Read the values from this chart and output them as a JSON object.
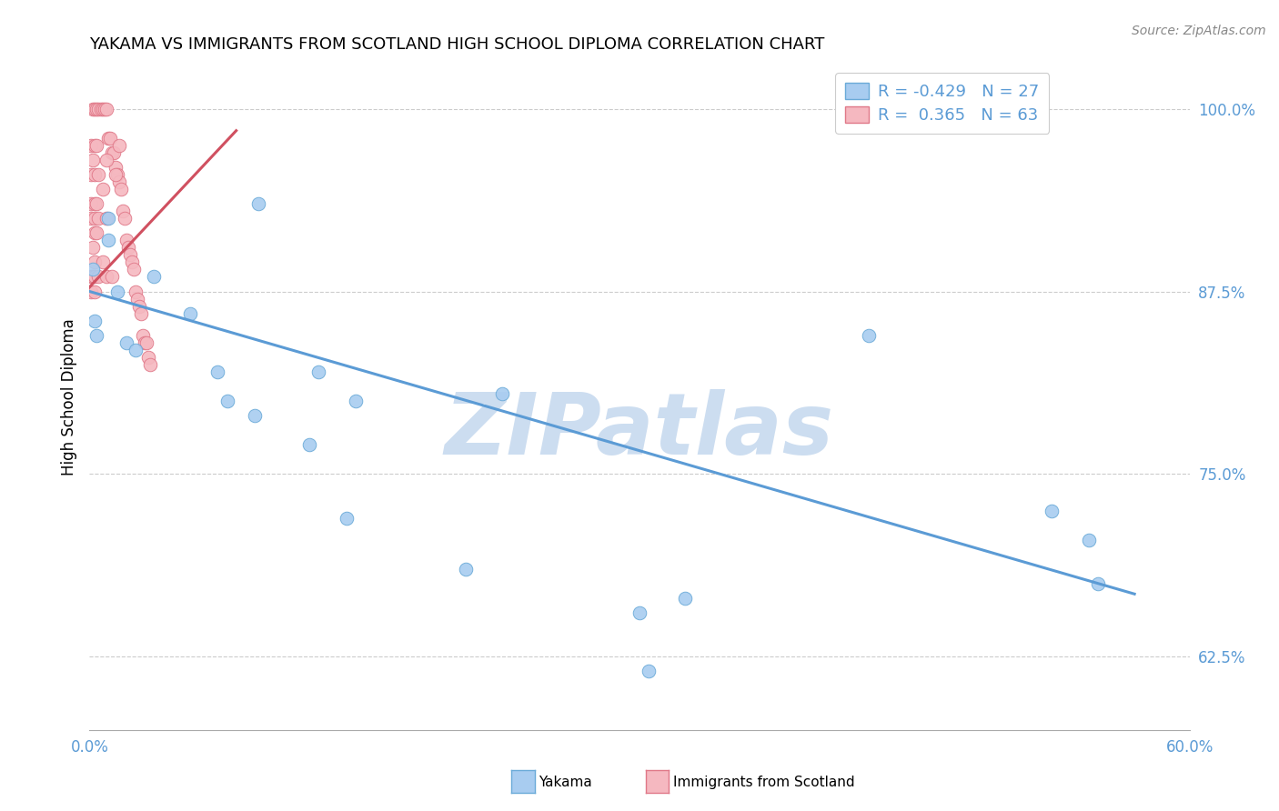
{
  "title": "YAKAMA VS IMMIGRANTS FROM SCOTLAND HIGH SCHOOL DIPLOMA CORRELATION CHART",
  "source": "Source: ZipAtlas.com",
  "ylabel": "High School Diploma",
  "xlim": [
    0.0,
    0.6
  ],
  "ylim": [
    0.575,
    1.03
  ],
  "yticks": [
    0.625,
    0.75,
    0.875,
    1.0
  ],
  "ytick_labels": [
    "62.5%",
    "75.0%",
    "87.5%",
    "100.0%"
  ],
  "xticks": [
    0.0,
    0.06,
    0.12,
    0.18,
    0.24,
    0.3,
    0.36,
    0.42,
    0.48,
    0.54,
    0.6
  ],
  "xtick_labels_show": [
    "0.0%",
    "60.0%"
  ],
  "legend_r_blue": "-0.429",
  "legend_n_blue": "27",
  "legend_r_pink": "0.365",
  "legend_n_pink": "63",
  "blue_color": "#A8CCF0",
  "blue_edge_color": "#6AAAD8",
  "pink_color": "#F5B8C0",
  "pink_edge_color": "#E07888",
  "blue_line_color": "#5B9BD5",
  "pink_line_color": "#D05060",
  "watermark": "ZIPatlas",
  "watermark_color": "#CCDDF0",
  "blue_scatter_x": [
    0.002,
    0.003,
    0.004,
    0.01,
    0.01,
    0.015,
    0.02,
    0.025,
    0.035,
    0.055,
    0.07,
    0.075,
    0.09,
    0.092,
    0.12,
    0.125,
    0.14,
    0.145,
    0.205,
    0.225,
    0.3,
    0.305,
    0.325,
    0.425,
    0.525,
    0.545,
    0.55
  ],
  "blue_scatter_y": [
    0.89,
    0.855,
    0.845,
    0.925,
    0.91,
    0.875,
    0.84,
    0.835,
    0.885,
    0.86,
    0.82,
    0.8,
    0.79,
    0.935,
    0.77,
    0.82,
    0.72,
    0.8,
    0.685,
    0.805,
    0.655,
    0.615,
    0.665,
    0.845,
    0.725,
    0.705,
    0.675
  ],
  "pink_scatter_x": [
    0.002,
    0.003,
    0.004,
    0.005,
    0.006,
    0.007,
    0.008,
    0.009,
    0.01,
    0.011,
    0.012,
    0.013,
    0.014,
    0.015,
    0.016,
    0.017,
    0.018,
    0.019,
    0.02,
    0.021,
    0.022,
    0.023,
    0.024,
    0.025,
    0.026,
    0.027,
    0.028,
    0.029,
    0.03,
    0.031,
    0.032,
    0.033,
    0.001,
    0.001,
    0.001,
    0.001,
    0.001,
    0.001,
    0.002,
    0.002,
    0.002,
    0.003,
    0.003,
    0.003,
    0.003,
    0.003,
    0.003,
    0.003,
    0.003,
    0.004,
    0.004,
    0.004,
    0.005,
    0.005,
    0.005,
    0.007,
    0.007,
    0.009,
    0.009,
    0.009,
    0.012,
    0.014,
    0.016
  ],
  "pink_scatter_y": [
    1.0,
    1.0,
    1.0,
    1.0,
    1.0,
    1.0,
    1.0,
    1.0,
    0.98,
    0.98,
    0.97,
    0.97,
    0.96,
    0.955,
    0.95,
    0.945,
    0.93,
    0.925,
    0.91,
    0.905,
    0.9,
    0.895,
    0.89,
    0.875,
    0.87,
    0.865,
    0.86,
    0.845,
    0.84,
    0.84,
    0.83,
    0.825,
    0.975,
    0.955,
    0.935,
    0.925,
    0.885,
    0.875,
    0.965,
    0.905,
    0.885,
    0.975,
    0.955,
    0.935,
    0.925,
    0.915,
    0.895,
    0.885,
    0.875,
    0.975,
    0.935,
    0.915,
    0.955,
    0.925,
    0.885,
    0.945,
    0.895,
    0.965,
    0.925,
    0.885,
    0.885,
    0.955,
    0.975
  ],
  "blue_trendline_x": [
    0.0,
    0.57
  ],
  "blue_trendline_y": [
    0.875,
    0.668
  ],
  "pink_trendline_x": [
    0.0,
    0.08
  ],
  "pink_trendline_y": [
    0.878,
    0.985
  ]
}
